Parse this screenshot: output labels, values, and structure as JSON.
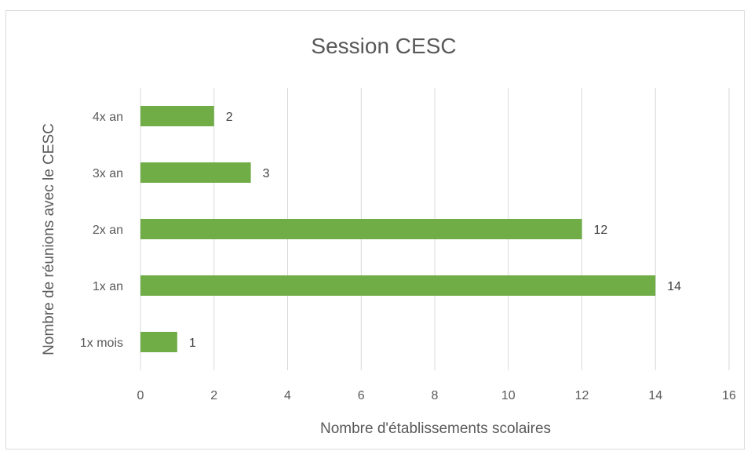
{
  "chart_data": {
    "type": "bar",
    "orientation": "horizontal",
    "title": "Session CESC",
    "xlabel": "Nombre d'établissements scolaires",
    "ylabel": "Nombre de réunions avec le CESC",
    "categories": [
      "1x mois",
      "1x an",
      "2x an",
      "3x an",
      "4x an"
    ],
    "values": [
      1,
      14,
      12,
      3,
      2
    ],
    "data_labels": [
      "1",
      "14",
      "12",
      "3",
      "2"
    ],
    "xlim": [
      0,
      16
    ],
    "x_ticks": [
      "0",
      "2",
      "4",
      "6",
      "8",
      "10",
      "12",
      "14",
      "16"
    ],
    "grid": true,
    "legend": "none",
    "bar_color": "#70ad47"
  }
}
